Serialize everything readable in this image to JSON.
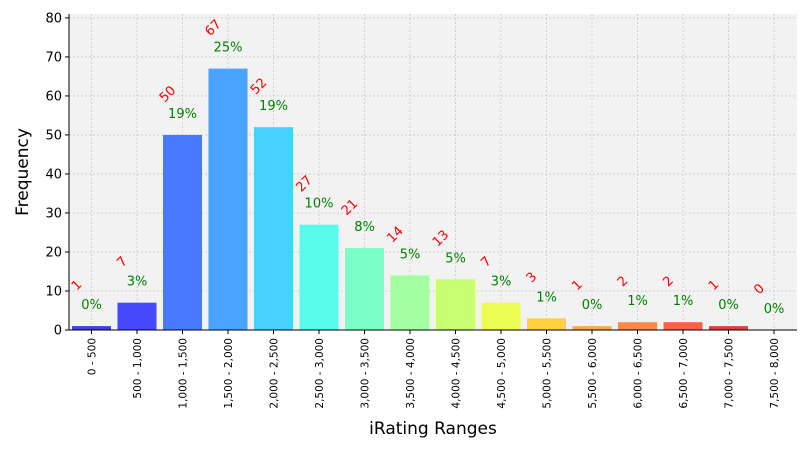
{
  "chart_data": {
    "type": "bar",
    "xlabel": "iRating Ranges",
    "ylabel": "Frequency",
    "ylim": [
      0,
      81
    ],
    "yticks": [
      0,
      10,
      20,
      30,
      40,
      50,
      60,
      70,
      80
    ],
    "grid": true,
    "categories": [
      "0 - 500",
      "500 - 1,000",
      "1,000 - 1,500",
      "1,500 - 2,000",
      "2,000 - 2,500",
      "2,500 - 3,000",
      "3,000 - 3,500",
      "3,500 - 4,000",
      "4,000 - 4,500",
      "4,500 - 5,000",
      "5,000 - 5,500",
      "5,500 - 6,000",
      "6,000 - 6,500",
      "6,500 - 7,000",
      "7,000 - 7,500",
      "7,500 - 8,000"
    ],
    "values": [
      1,
      7,
      50,
      67,
      52,
      27,
      21,
      14,
      13,
      7,
      3,
      1,
      2,
      2,
      1,
      0
    ],
    "count_labels": [
      "1",
      "7",
      "50",
      "67",
      "52",
      "27",
      "21",
      "14",
      "13",
      "7",
      "3",
      "1",
      "2",
      "2",
      "1",
      "0"
    ],
    "percent_labels": [
      "0%",
      "3%",
      "19%",
      "25%",
      "19%",
      "10%",
      "8%",
      "5%",
      "5%",
      "3%",
      "1%",
      "0%",
      "1%",
      "1%",
      "0%",
      "0%"
    ],
    "colors": [
      "#4040e0",
      "#4848ff",
      "#4878ff",
      "#48a4ff",
      "#48d0ff",
      "#58fcec",
      "#7cffc8",
      "#a4ffa0",
      "#c8ff70",
      "#ecfc50",
      "#ffd040",
      "#ffa848",
      "#ff8848",
      "#ff6048",
      "#e04040",
      "#c02828"
    ],
    "count_label_color": "#ff0000",
    "percent_label_color": "#008000",
    "plot_background": "#f2f2f2"
  }
}
